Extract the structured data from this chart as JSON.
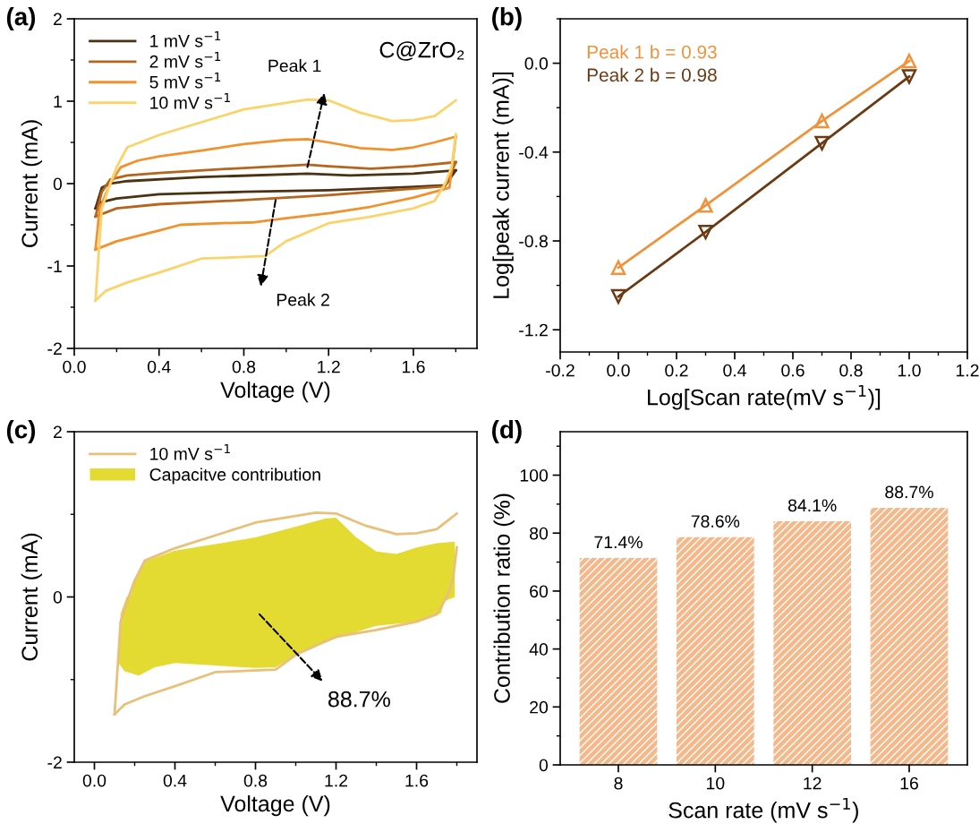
{
  "chart_data": [
    {
      "type": "line",
      "title": "(a)",
      "xlabel": "Voltage (V)",
      "ylabel": "Current (mA)",
      "xlim": [
        0,
        1.9
      ],
      "ylim": [
        -2,
        2
      ],
      "xticks": [
        {
          "value": 0,
          "label": "0.0"
        },
        0.4,
        0.8,
        1.2,
        1.6
      ],
      "yticks": [
        {
          "value": -2,
          "label": "-2"
        },
        {
          "value": -1,
          "label": "-1"
        },
        0,
        1,
        2
      ],
      "legend": "top left",
      "annotations": [
        "C@ZrO₂",
        "Peak 1",
        "Peak 2"
      ],
      "series": [
        {
          "name": "1 mV s$^{−1}$",
          "color": "#4a3212",
          "x": [
            0.1,
            0.13,
            0.17,
            0.25,
            0.6,
            1.1,
            1.3,
            1.6,
            1.8
          ],
          "values": [
            -0.3,
            -0.05,
            0.0,
            0.03,
            0.08,
            0.12,
            0.1,
            0.12,
            0.16
          ]
        },
        {
          "color": "#4a3212",
          "x": [
            1.8,
            1.75,
            1.6,
            1.2,
            0.8,
            0.4,
            0.2,
            0.12,
            0.1
          ],
          "values": [
            0.16,
            -0.02,
            -0.04,
            -0.08,
            -0.1,
            -0.13,
            -0.18,
            -0.23,
            -0.3
          ]
        },
        {
          "name": "2 mV s$^{−1}$",
          "color": "#b5651d",
          "x": [
            0.1,
            0.13,
            0.17,
            0.25,
            0.4,
            0.8,
            1.1,
            1.2,
            1.4,
            1.6,
            1.8
          ],
          "values": [
            -0.4,
            -0.1,
            0.05,
            0.1,
            0.13,
            0.19,
            0.23,
            0.21,
            0.18,
            0.21,
            0.26
          ]
        },
        {
          "color": "#b5651d",
          "x": [
            1.8,
            1.75,
            1.6,
            1.2,
            0.8,
            0.4,
            0.2,
            0.1
          ],
          "values": [
            0.26,
            -0.03,
            -0.06,
            -0.14,
            -0.2,
            -0.25,
            -0.3,
            -0.4
          ]
        },
        {
          "name": "5 mV s$^{−1}$",
          "color": "#f0922e",
          "x": [
            0.1,
            0.12,
            0.17,
            0.22,
            0.3,
            0.4,
            0.6,
            0.8,
            1.0,
            1.1,
            1.2,
            1.35,
            1.5,
            1.6,
            1.7,
            1.8
          ],
          "values": [
            -0.8,
            -0.3,
            0.0,
            0.2,
            0.28,
            0.33,
            0.4,
            0.48,
            0.53,
            0.54,
            0.5,
            0.43,
            0.41,
            0.44,
            0.5,
            0.57
          ]
        },
        {
          "color": "#f0922e",
          "x": [
            1.8,
            1.77,
            1.6,
            1.4,
            1.2,
            1.0,
            0.85,
            0.7,
            0.5,
            0.4,
            0.2,
            0.1
          ],
          "values": [
            0.57,
            -0.05,
            -0.17,
            -0.28,
            -0.36,
            -0.42,
            -0.47,
            -0.48,
            -0.5,
            -0.57,
            -0.7,
            -0.8
          ]
        },
        {
          "name": "10 mV s$^{−1}$",
          "color": "#fad36a",
          "x": [
            0.1,
            0.13,
            0.17,
            0.2,
            0.25,
            0.4,
            0.8,
            1.1,
            1.2,
            1.35,
            1.5,
            1.6,
            1.7,
            1.8
          ],
          "values": [
            -1.42,
            -0.3,
            0.0,
            0.2,
            0.44,
            0.59,
            0.9,
            1.02,
            1.01,
            0.86,
            0.76,
            0.77,
            0.82,
            1.01
          ]
        },
        {
          "color": "#fad36a",
          "x": [
            1.8,
            1.78,
            1.75,
            1.7,
            1.6,
            1.4,
            1.2,
            1.0,
            0.9,
            0.6,
            0.4,
            0.25,
            0.15,
            0.1
          ],
          "values": [
            0.6,
            0.2,
            0.0,
            -0.21,
            -0.3,
            -0.4,
            -0.48,
            -0.7,
            -0.88,
            -0.91,
            -1.08,
            -1.2,
            -1.3,
            -1.42
          ]
        }
      ]
    },
    {
      "type": "line",
      "title": "(b)",
      "xlabel": "Log[Scan rate(mV s$^{−1}$)]",
      "ylabel": "Log[peak current (mA)]",
      "xlim": [
        -0.2,
        1.2
      ],
      "ylim": [
        -1.3,
        0.2
      ],
      "xticks": [
        {
          "value": -0.2,
          "label": "-0.2"
        },
        {
          "value": 0,
          "label": "0.0"
        },
        0.2,
        0.4,
        0.6,
        0.8,
        {
          "value": 1,
          "label": "1.0"
        },
        1.2
      ],
      "yticks": [
        {
          "value": -1.2,
          "label": "-1.2"
        },
        {
          "value": -0.8,
          "label": "-0.8"
        },
        {
          "value": -0.4,
          "label": "-0.4"
        },
        {
          "value": 0,
          "label": "0.0"
        }
      ],
      "legend": "top left",
      "series": [
        {
          "name": "Peak 1 b = 0.93",
          "color": "#f0923a",
          "marker": "triangle",
          "x": [
            0,
            0.3,
            0.7,
            1.0
          ],
          "values": [
            -0.92,
            -0.64,
            -0.26,
            0.01
          ]
        },
        {
          "name": "Peak 2 b = 0.98",
          "color": "#6b3a12",
          "marker": "triangle_down",
          "x": [
            0,
            0.3,
            0.7,
            1.0
          ],
          "values": [
            -1.05,
            -0.76,
            -0.36,
            -0.06
          ]
        }
      ]
    },
    {
      "type": "line",
      "title": "(c)",
      "xlabel": "Voltage (V)",
      "ylabel": "Current (mA)",
      "xlim": [
        -0.1,
        1.9
      ],
      "ylim": [
        -2,
        2
      ],
      "xticks": [
        {
          "value": 0,
          "label": "0.0"
        },
        0.4,
        0.8,
        1.2,
        1.6
      ],
      "yticks": [
        {
          "value": -2,
          "label": "-2"
        },
        0,
        2
      ],
      "legend": "top left",
      "annotations": [
        "88.7%"
      ],
      "series": [
        {
          "name": "10 mV s$^{−1}$",
          "color": "#e8c07a",
          "x": [
            0.1,
            0.13,
            0.17,
            0.2,
            0.25,
            0.4,
            0.8,
            1.1,
            1.2,
            1.35,
            1.5,
            1.6,
            1.7,
            1.8
          ],
          "values": [
            -1.42,
            -0.3,
            0.0,
            0.2,
            0.44,
            0.59,
            0.9,
            1.02,
            1.01,
            0.86,
            0.76,
            0.77,
            0.82,
            1.01
          ]
        },
        {
          "color": "#e8c07a",
          "x": [
            1.8,
            1.78,
            1.75,
            1.7,
            1.6,
            1.4,
            1.2,
            1.0,
            0.9,
            0.6,
            0.4,
            0.25,
            0.15,
            0.1
          ],
          "values": [
            0.6,
            0.2,
            0.0,
            -0.21,
            -0.3,
            -0.4,
            -0.48,
            -0.7,
            -0.88,
            -0.91,
            -1.08,
            -1.2,
            -1.3,
            -1.42
          ]
        },
        {
          "name": "Capacitve contribution",
          "type": "area",
          "color": "#e3da32",
          "x": [
            0.12,
            0.13,
            0.16,
            0.18,
            0.2,
            0.25,
            0.4,
            0.8,
            1.0,
            1.15,
            1.2,
            1.3,
            1.4,
            1.5,
            1.6,
            1.7,
            1.79,
            1.79,
            1.74,
            1.72,
            1.6,
            1.4,
            1.2,
            1.0,
            0.9,
            0.8,
            0.6,
            0.4,
            0.3,
            0.22,
            0.15,
            0.12
          ],
          "values": [
            -0.8,
            -0.2,
            0.0,
            0.02,
            0.2,
            0.43,
            0.56,
            0.72,
            0.85,
            0.95,
            0.96,
            0.72,
            0.55,
            0.52,
            0.6,
            0.65,
            0.67,
            0.0,
            -0.05,
            -0.2,
            -0.3,
            -0.35,
            -0.5,
            -0.7,
            -0.85,
            -0.86,
            -0.83,
            -0.8,
            -0.85,
            -0.95,
            -0.9,
            -0.8
          ]
        }
      ]
    },
    {
      "type": "bar",
      "title": "(d)",
      "xlabel": "Scan rate (mV s$^{−1}$)",
      "ylabel": "Contribution ratio (%)",
      "ylim": [
        0,
        115
      ],
      "yticks": [
        0,
        20,
        40,
        60,
        80,
        100
      ],
      "categories": [
        "8",
        "10",
        "12",
        "16"
      ],
      "values": [
        71.4,
        78.6,
        84.1,
        88.7
      ],
      "color": "#f5b88a",
      "value_labels": [
        "71.4%",
        "78.6%",
        "84.1%",
        "88.7%"
      ]
    }
  ]
}
